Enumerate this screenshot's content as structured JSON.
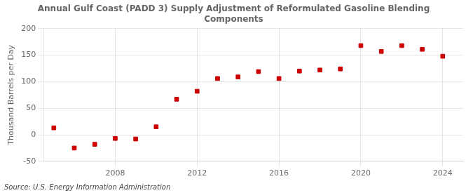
{
  "chart_data": {
    "type": "scatter",
    "title": "Annual Gulf Coast (PADD 3) Supply Adjustment of Reformulated Gasoline Blending\nComponents",
    "ylabel": "Thousand Barrels per Day",
    "annotations": [
      "Source: U.S. Energy Information Administration"
    ],
    "x": [
      2005,
      2006,
      2007,
      2008,
      2009,
      2010,
      2011,
      2012,
      2013,
      2014,
      2015,
      2016,
      2017,
      2018,
      2019,
      2020,
      2021,
      2022,
      2023,
      2024
    ],
    "values": [
      13,
      -25,
      -18,
      -7,
      -8,
      15,
      67,
      82,
      106,
      109,
      119,
      106,
      120,
      122,
      124,
      168,
      157,
      168,
      161,
      148
    ],
    "color": "#cc0000",
    "marker": "square",
    "xlim": [
      2004.5,
      2025
    ],
    "xticks": [
      2008,
      2012,
      2016,
      2020,
      2024
    ],
    "ylim": [
      -50,
      200
    ],
    "yticks": [
      -50,
      0,
      50,
      100,
      150,
      200
    ],
    "grid": true
  }
}
